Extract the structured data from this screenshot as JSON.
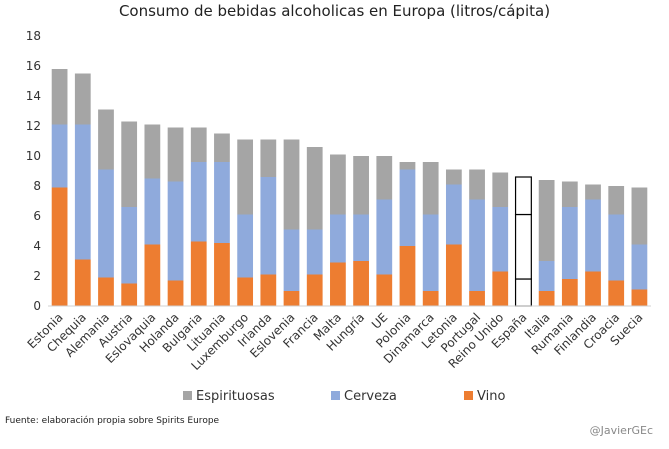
{
  "chart_data": {
    "type": "bar",
    "stacked": true,
    "title": "Consumo de bebidas alcoholicas en Europa (litros/cápita)",
    "xlabel": "",
    "ylabel": "",
    "ylim": [
      0,
      18
    ],
    "yticks": [
      0,
      2,
      4,
      6,
      8,
      10,
      12,
      14,
      16,
      18
    ],
    "grid": false,
    "legend_position": "bottom",
    "categories": [
      "Estonia",
      "Chequia",
      "Alemania",
      "Austria",
      "Eslovaquia",
      "Holanda",
      "Bulgaria",
      "Lituania",
      "Luxemburgo",
      "Irlanda",
      "Eslovenia",
      "Francia",
      "Malta",
      "Hungría",
      "UE",
      "Polonia",
      "Dinamarca",
      "Letonia",
      "Portugal",
      "Reino Unido",
      "España",
      "Italia",
      "Rumania",
      "Finlandia",
      "Croacia",
      "Suecia"
    ],
    "highlight_category": "España",
    "series": [
      {
        "name": "Vino",
        "color": "#ED7D31",
        "values": [
          7.9,
          3.1,
          1.9,
          1.5,
          4.1,
          1.7,
          4.3,
          4.2,
          1.9,
          2.1,
          1.0,
          2.1,
          2.9,
          3.0,
          2.1,
          4.0,
          1.0,
          4.1,
          1.0,
          2.3,
          1.8,
          1.0,
          1.8,
          2.3,
          1.7,
          1.1
        ]
      },
      {
        "name": "Cerveza",
        "color": "#8FAADC",
        "values": [
          4.2,
          9.0,
          7.2,
          5.1,
          4.4,
          6.6,
          5.3,
          5.4,
          4.2,
          6.5,
          4.1,
          3.0,
          3.2,
          3.1,
          5.0,
          5.1,
          5.1,
          4.0,
          6.1,
          4.3,
          4.3,
          2.0,
          4.8,
          4.8,
          4.4,
          3.0
        ]
      },
      {
        "name": "Espirituosas",
        "color": "#A5A5A5",
        "values": [
          3.7,
          3.4,
          4.0,
          5.7,
          3.6,
          3.6,
          2.3,
          1.9,
          5.0,
          2.5,
          6.0,
          5.5,
          4.0,
          3.9,
          2.9,
          0.5,
          3.5,
          1.0,
          2.0,
          2.3,
          2.5,
          5.4,
          1.7,
          1.0,
          1.9,
          3.8
        ]
      }
    ],
    "legend_order": [
      "Espirituosas",
      "Cerveza",
      "Vino"
    ]
  },
  "footer": {
    "source": "Fuente: elaboración propia sobre Spirits Europe",
    "credit": "@JavierGEc"
  }
}
